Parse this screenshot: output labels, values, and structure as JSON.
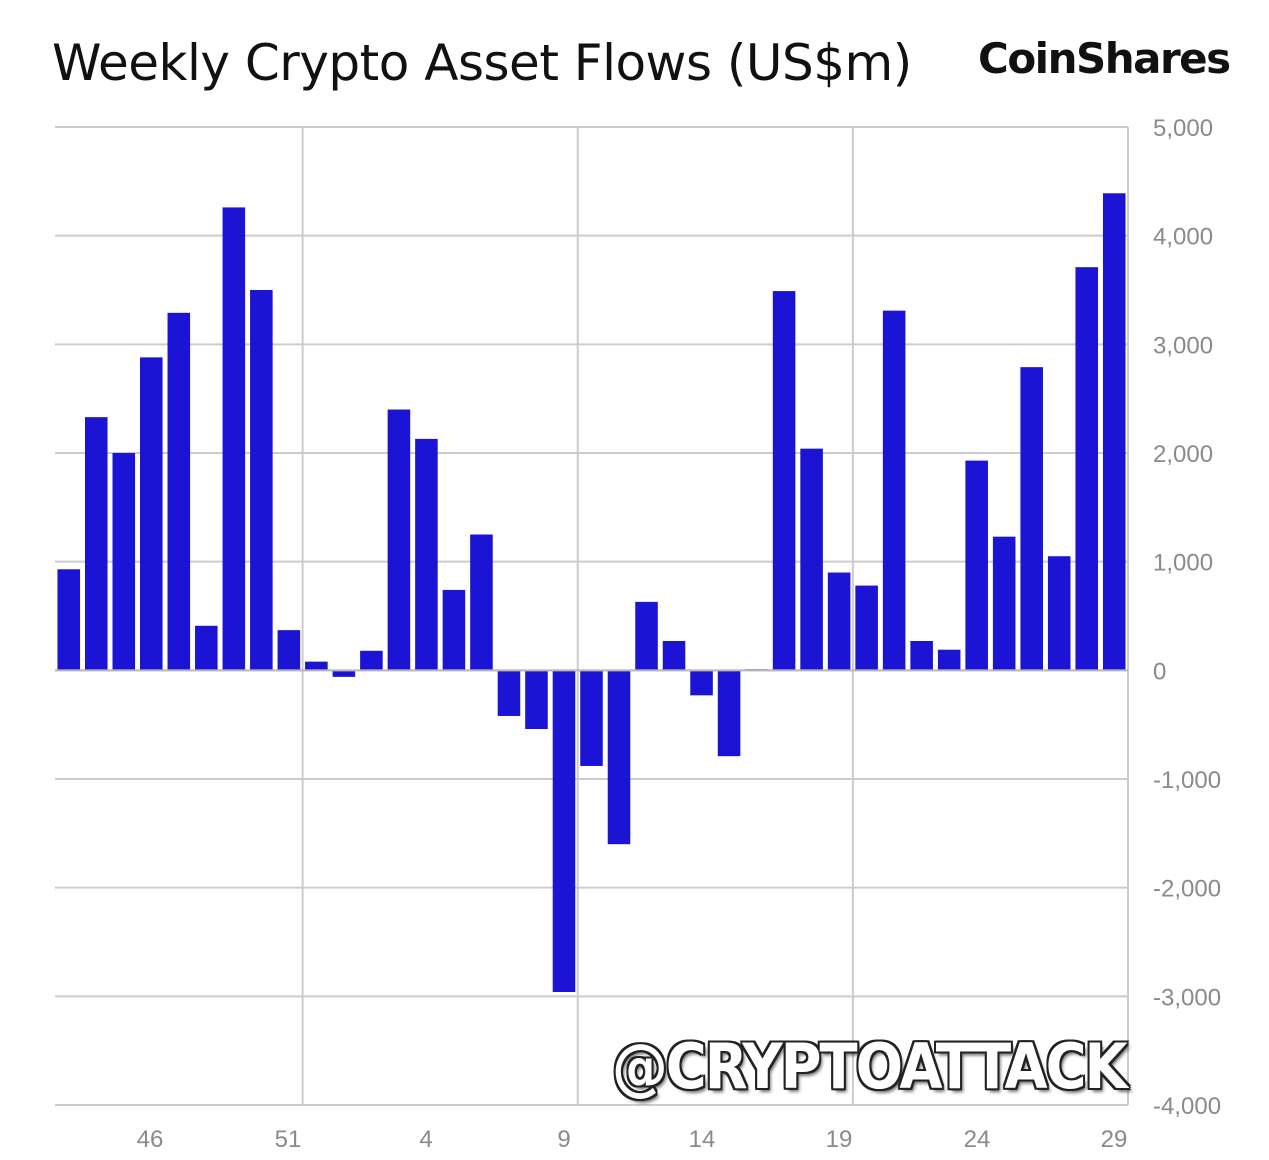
{
  "header": {
    "title": "Weekly Crypto Asset Flows (US$m)",
    "brand": "CoinShares"
  },
  "watermark": "@CRYPTOATTACK",
  "colors": {
    "bar": "#1c14d4",
    "grid": "#cccccc",
    "axis_text": "#8a8a8a"
  },
  "chart_data": {
    "type": "bar",
    "title": "Weekly Crypto Asset Flows (US$m)",
    "xlabel": "",
    "ylabel": "",
    "ylim": [
      -4000,
      5000
    ],
    "y_ticks": [
      5000,
      4000,
      3000,
      2000,
      1000,
      0,
      -1000,
      -2000,
      -3000,
      -4000
    ],
    "y_tick_labels": [
      "5,000",
      "4,000",
      "3,000",
      "2,000",
      "1,000",
      "0",
      "-1,000",
      "-2,000",
      "-3,000",
      "-4,000"
    ],
    "y_axis_side": "right",
    "x_tick_labels": [
      "46",
      "51",
      "4",
      "9",
      "14",
      "19",
      "24",
      "29"
    ],
    "grid": true,
    "legend": "none",
    "values": [
      930,
      2330,
      2000,
      2880,
      3290,
      410,
      4260,
      3500,
      370,
      80,
      -60,
      180,
      2400,
      2130,
      740,
      1250,
      -420,
      -540,
      -2960,
      -880,
      -1600,
      630,
      270,
      -230,
      -790,
      10,
      3490,
      2040,
      900,
      780,
      3310,
      270,
      190,
      1930,
      1230,
      2790,
      1050,
      3710,
      4390
    ]
  }
}
